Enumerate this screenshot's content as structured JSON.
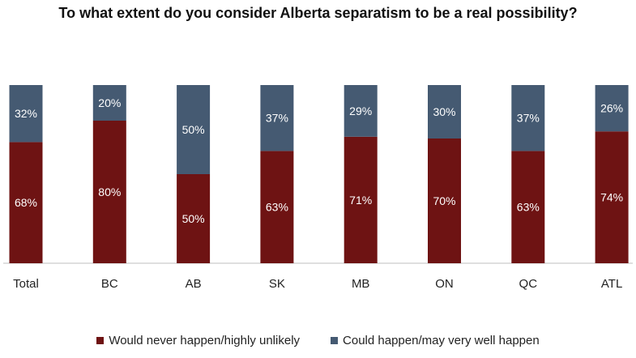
{
  "chart_data": {
    "type": "bar",
    "stacked": true,
    "percent_stacked": true,
    "title": "To what extent do you consider Alberta separatism to be a real possibility?",
    "xlabel": "",
    "ylabel": "",
    "ylim": [
      0,
      100
    ],
    "grid": false,
    "legend_position": "bottom",
    "categories": [
      "Total",
      "BC",
      "AB",
      "SK",
      "MB",
      "ON",
      "QC",
      "ATL"
    ],
    "series": [
      {
        "name": "Would never happen/highly unlikely",
        "color": "#6e1313",
        "values": [
          68,
          80,
          50,
          63,
          71,
          70,
          63,
          74
        ],
        "labels": [
          "68%",
          "80%",
          "50%",
          "63%",
          "71%",
          "70%",
          "63%",
          "74%"
        ]
      },
      {
        "name": "Could happen/may very well happen",
        "color": "#455a72",
        "values": [
          32,
          20,
          50,
          37,
          29,
          30,
          37,
          26
        ],
        "labels": [
          "32%",
          "20%",
          "50%",
          "37%",
          "29%",
          "30%",
          "37%",
          "26%"
        ]
      }
    ]
  }
}
